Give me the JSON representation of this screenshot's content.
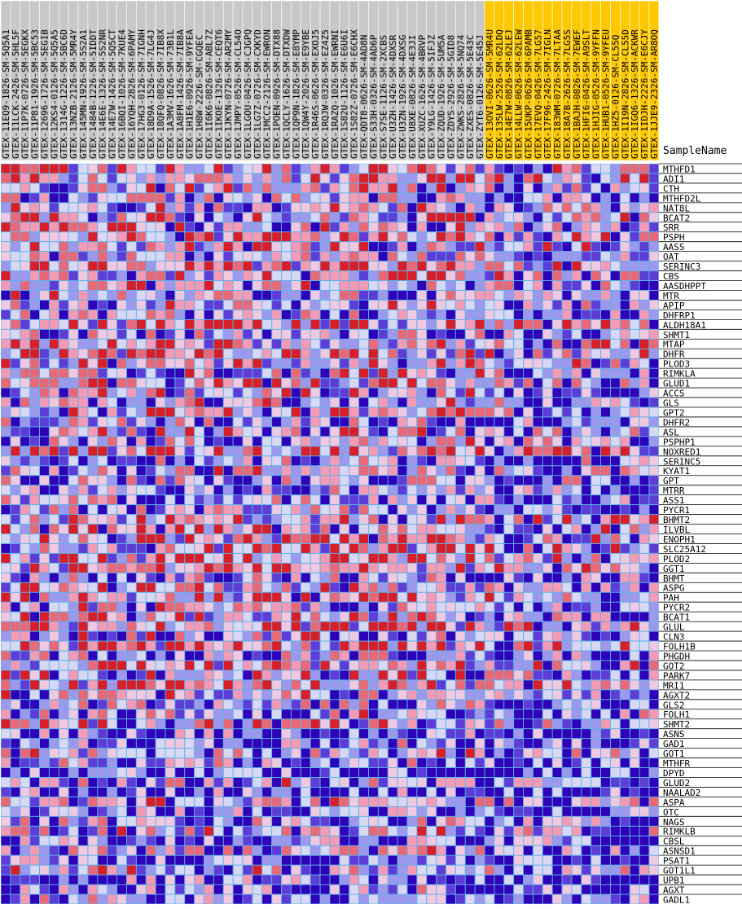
{
  "chart_data": {
    "type": "heatmap",
    "title": "SampleName",
    "samples": [
      "GTEX-11EQ9-1826-SM-5Q5A1",
      "GTEX-11LCK-2426-SM-5HL5F",
      "GTEX-11P7K-0726-SM-5EGKX",
      "GTEX-11P81-1926-SM-5BC53",
      "GTEX-12696-1726-SM-5EGIB",
      "GTEX-12KS4-0126-SM-5Q5A5",
      "GTEX-1314G-1226-SM-5BC6D",
      "GTEX-13NZB-2126-SM-5MR4Y",
      "GTEX-145MN-1926-SM-5S2A1",
      "GTEX-1484B-1226-SM-5IDDT",
      "GTEX-14E6E-1326-SM-5S2NR",
      "GTEX-14E7W-1426-SM-5Q5CT",
      "GTEX-16BQI-1026-SM-7KUE4",
      "GTEX-16YQH-2826-SM-6PAMY",
      "GTEX-17HG3-0126-SM-7IGNH",
      "GTEX-18D9A-1526-SM-7LG4J",
      "GTEX-18QFQ-0826-SM-7IB8X",
      "GTEX-1A3MV-1626-SM-73B1L",
      "GTEX-1A8FM-1426-SM-7IB8A",
      "GTEX-1H1E6-0926-SM-9YFEA",
      "GTEX-1H8W-2226-SM-CGQEC",
      "GTEX-1I6K6-0826-SM-ABL7Z",
      "GTEX-1IKOE-1326-SM-CEQT6",
      "GTEX-1JKYN-0726-SM-AR2MY",
      "GTEX-1JMPY-0526-SM-CL54O",
      "GTEX-1LGOU-0426-SM-CJGPQ",
      "GTEX-1LG7Z-0726-SM-CXKYD",
      "GTEX-1MCC2-2126-SM-EWRON",
      "GTEX-1POEN-0926-SM-DTX88",
      "GTEX-1QCLY-1626-SM-DTXDW",
      "GTEX-1QP9N-1826-SM-E8YMP",
      "GTEX-1QW4Y-2026-SM-E9YBE",
      "GTEX-1R46S-0626-SM-EXOJ5",
      "GTEX-1RQJW-0326-SM-EZ4Z5",
      "GTEX-1RAZQ-1026-SM-EWRNI",
      "GTEX-1S82U-1126-SM-E6U6I",
      "GTEX-1S82Z-0726-SM-E6CHX",
      "GTEX-QDT8-0626-SM-4AD8N",
      "GTEX-S33H-0326-SM-4AD6P",
      "GTEX-S7SE-1126-SM-2XCBS",
      "GTEX-U3ZH-1426-SM-4DXSR",
      "GTEX-U3ZN-1926-SM-4DXSG",
      "GTEX-U8XE-0826-SM-4E3JI",
      "GTEX-XUZC-1626-SM-4BRVP",
      "GTEX-Y9LG-1426-SM-5IFJZ",
      "GTEX-ZQUD-1926-SM-5UM5A",
      "GTEX-ZDYS-2926-SM-5GID8",
      "GTEX-ZWKS-2826-SM-5NQ74",
      "GTEX-ZXES-0826-SM-5E43C",
      "GTEX-ZYT6-0126-SM-5E45J",
      "GTEX-13OVI-0626-SM-5MR4U",
      "GTEX-135LW-2526-SM-62LDQ",
      "GTEX-14E7W-0826-SM-62LEJ",
      "GTEX-14LLW-0626-SM-62LEW",
      "GTEX-15UKP-0626-SM-6PAMB",
      "GTEX-17EVQ-0426-SM-7LG57",
      "GTEX-17F96-2426-SM-7IGLN",
      "GTEX-183WM-0726-SM-7LTAA",
      "GTEX-18A7B-2626-SM-7LG5S",
      "GTEX-1BAJH-0826-SM-7EWEF",
      "GTEX-1HFI6-0426-SM-A9SLT",
      "GTEX-1HJIG-0526-SM-9YFFN",
      "GTEX-1HUB1-0526-SM-9YFEU",
      "GTEX-1HZ5-0126-SM-CL55Q",
      "GTEX-1I19N-2826-SM-CL55D",
      "GTEX-1IGQ6-1326-SM-ACKWR",
      "GTEX-1IDJH-2226-SM-E6CJY",
      "GTEX-1JJE9-2326-SM-AR8OQ"
    ],
    "highlighted_from": 50,
    "genes": [
      "MTHFD1",
      "ADI1",
      "CTH",
      "MTHFD2L",
      "NAT8L",
      "BCAT2",
      "SRR",
      "PSPH",
      "AASS",
      "OAT",
      "SERINC3",
      "CBS",
      "AASDHPPT",
      "MTR",
      "APIP",
      "DHFRP1",
      "ALDH18A1",
      "SHMT1",
      "MTAP",
      "DHFR",
      "PLOD3",
      "RIMKLA",
      "GLUD1",
      "ACCS",
      "GLS",
      "GPT2",
      "DHFR2",
      "ASL",
      "PSPHP1",
      "NOXRED1",
      "SERINC5",
      "KYAT1",
      "GPT",
      "MTRR",
      "ASS1",
      "PYCR1",
      "BHMT2",
      "ILVBL",
      "ENOPH1",
      "SLC25A12",
      "PLOD2",
      "GGT1",
      "BHMT",
      "ASPG",
      "PAH",
      "PYCR2",
      "BCAT1",
      "GLUL",
      "CLN3",
      "FOLH1B",
      "PHGDH",
      "GOT2",
      "PARK7",
      "MRI1",
      "AGXT2",
      "GLS2",
      "FOLH1",
      "SHMT2",
      "ASNS",
      "GAD1",
      "GOT1",
      "MTHFR",
      "DPYD",
      "GLUD2",
      "NAALAD2",
      "ASPA",
      "OTC",
      "NAGS",
      "RIMKLB",
      "CBSL",
      "ASNSD1",
      "PSAT1",
      "GOT1L1",
      "UPB1",
      "AGXT",
      "GADL1"
    ],
    "color_scale": {
      "levels": [
        "#2e00b8",
        "#5e3cd6",
        "#9e98ec",
        "#d8d8f4",
        "#f0c8e0",
        "#f49ab4",
        "#e86878",
        "#d81e28"
      ],
      "low": "blue",
      "high": "red"
    },
    "gap_color": "#5fb1e8",
    "label_bg": "#c8c8c8",
    "label_highlight_bg": "#ffc800",
    "seed": 20240611
  }
}
